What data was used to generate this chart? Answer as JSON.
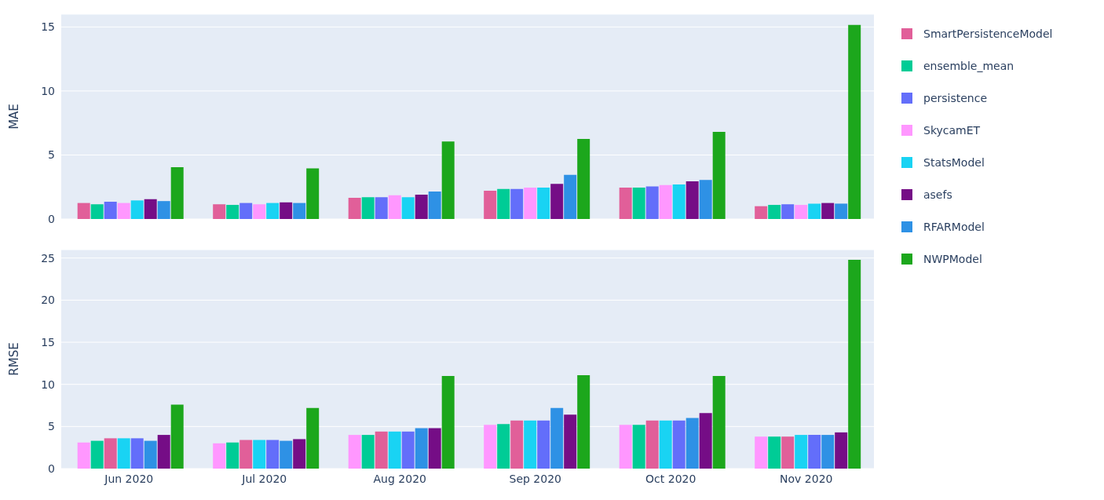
{
  "chart_data": [
    {
      "type": "bar",
      "ylabel": "MAE",
      "categories": [
        null,
        null,
        null,
        null,
        null,
        null
      ],
      "ylim": [
        0,
        16
      ],
      "yticks": [
        0,
        5,
        10,
        15
      ],
      "grid": "y",
      "legend": "right",
      "tick_labels": "y",
      "series": [
        {
          "name": "SmartPersistenceModel",
          "color": "#e15f99",
          "values": [
            1.25,
            1.15,
            1.65,
            2.2,
            2.45,
            1.0
          ]
        },
        {
          "name": "ensemble_mean",
          "color": "#00cc96",
          "values": [
            1.15,
            1.1,
            1.7,
            2.35,
            2.45,
            1.1
          ]
        },
        {
          "name": "persistence",
          "color": "#636efa",
          "values": [
            1.35,
            1.25,
            1.7,
            2.35,
            2.55,
            1.15
          ]
        },
        {
          "name": "SkycamET",
          "color": "#ff97ff",
          "values": [
            1.25,
            1.15,
            1.85,
            2.45,
            2.65,
            1.1
          ]
        },
        {
          "name": "StatsModel",
          "color": "#19d3f3",
          "values": [
            1.45,
            1.25,
            1.7,
            2.45,
            2.7,
            1.2
          ]
        },
        {
          "name": "asefs",
          "color": "#750d86",
          "values": [
            1.55,
            1.3,
            1.9,
            2.75,
            2.95,
            1.25
          ]
        },
        {
          "name": "RFARModel",
          "color": "#2e91e5",
          "values": [
            1.4,
            1.25,
            2.15,
            3.45,
            3.05,
            1.2
          ]
        },
        {
          "name": "NWPModel",
          "color": "#1ca71c",
          "values": [
            4.05,
            3.95,
            6.05,
            6.25,
            6.8,
            15.15
          ]
        }
      ]
    },
    {
      "type": "bar",
      "ylabel": "RMSE",
      "categories": [
        "Jun 2020",
        "Jul 2020",
        "Aug 2020",
        "Sep 2020",
        "Oct 2020",
        "Nov 2020"
      ],
      "ylim": [
        0,
        26
      ],
      "yticks": [
        0,
        5,
        10,
        15,
        20,
        25
      ],
      "grid": "y",
      "series": [
        {
          "color": "#ff97ff",
          "values": [
            3.1,
            3.0,
            4.0,
            5.2,
            5.2,
            3.8
          ]
        },
        {
          "color": "#00cc96",
          "values": [
            3.3,
            3.1,
            4.0,
            5.3,
            5.2,
            3.8
          ]
        },
        {
          "color": "#e15f99",
          "values": [
            3.6,
            3.4,
            4.4,
            5.7,
            5.7,
            3.8
          ]
        },
        {
          "color": "#19d3f3",
          "values": [
            3.6,
            3.4,
            4.4,
            5.7,
            5.7,
            4.0
          ]
        },
        {
          "color": "#636efa",
          "values": [
            3.6,
            3.4,
            4.4,
            5.7,
            5.7,
            4.0
          ]
        },
        {
          "color": "#2e91e5",
          "values": [
            3.3,
            3.3,
            4.8,
            7.2,
            6.0,
            4.0
          ]
        },
        {
          "color": "#750d86",
          "values": [
            4.0,
            3.5,
            4.8,
            6.4,
            6.6,
            4.3
          ]
        },
        {
          "color": "#1ca71c",
          "values": [
            7.6,
            7.2,
            11.0,
            11.1,
            11.0,
            24.8
          ]
        }
      ]
    }
  ]
}
